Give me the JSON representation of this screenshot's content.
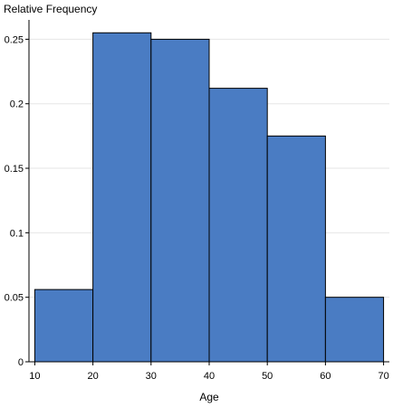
{
  "chart_data": {
    "type": "bar",
    "title": "",
    "xlabel": "Age",
    "ylabel": "Relative Frequency",
    "bins": [
      {
        "x0": 10,
        "x1": 20,
        "value": 0.056
      },
      {
        "x0": 20,
        "x1": 30,
        "value": 0.255
      },
      {
        "x0": 30,
        "x1": 40,
        "value": 0.25
      },
      {
        "x0": 40,
        "x1": 50,
        "value": 0.212
      },
      {
        "x0": 50,
        "x1": 60,
        "value": 0.175
      },
      {
        "x0": 60,
        "x1": 70,
        "value": 0.05
      }
    ],
    "xlim": [
      9,
      71
    ],
    "ylim": [
      0,
      0.265
    ],
    "xticks": [
      10,
      20,
      30,
      40,
      50,
      60,
      70
    ],
    "yticks": [
      0,
      0.05,
      0.1,
      0.15,
      0.2,
      0.25
    ],
    "xtick_labels": [
      "10",
      "20",
      "30",
      "40",
      "50",
      "60",
      "70"
    ],
    "ytick_labels": [
      "0",
      "0.05",
      "0.1",
      "0.15",
      "0.2",
      "0.25"
    ],
    "grid": "horizontal",
    "legend": "none",
    "colors": {
      "bar_fill": "#4a7cc3",
      "bar_stroke": "#000000",
      "grid": "#e6e6e6",
      "axis": "#000000"
    }
  }
}
